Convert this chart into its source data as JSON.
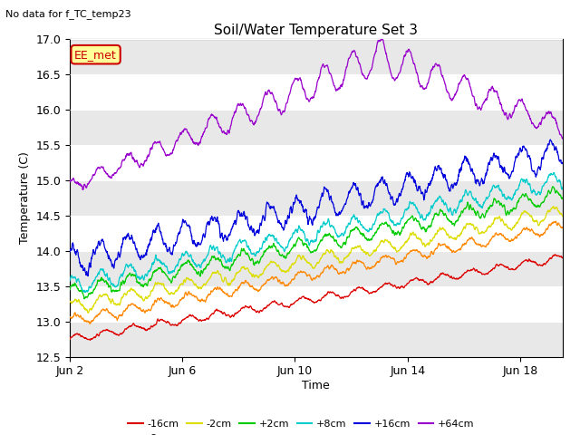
{
  "title": "Soil/Water Temperature Set 3",
  "xlabel": "Time",
  "ylabel": "Temperature (C)",
  "suptitle": "No data for f_TC_temp23",
  "ylim": [
    12.5,
    17.0
  ],
  "xlim_days": [
    0,
    17.5
  ],
  "yticks": [
    12.5,
    13.0,
    13.5,
    14.0,
    14.5,
    15.0,
    15.5,
    16.0,
    16.5,
    17.0
  ],
  "xtick_labels": [
    "Jun 2",
    "Jun 6",
    "Jun 10",
    "Jun 14",
    "Jun 18"
  ],
  "xtick_positions": [
    0,
    4,
    8,
    12,
    16
  ],
  "series": {
    "-16cm": {
      "color": "#dd0000",
      "start": 12.75,
      "end": 13.9,
      "amp": 0.05,
      "phase": 0.0
    },
    "-8cm": {
      "color": "#ff8800",
      "start": 13.0,
      "end": 14.35,
      "amp": 0.07,
      "phase": 0.3
    },
    "-2cm": {
      "color": "#dddd00",
      "start": 13.2,
      "end": 14.55,
      "amp": 0.09,
      "phase": 0.5
    },
    "+2cm": {
      "color": "#00cc00",
      "start": 13.4,
      "end": 14.8,
      "amp": 0.1,
      "phase": 0.7
    },
    "+8cm": {
      "color": "#00cccc",
      "start": 13.5,
      "end": 15.0,
      "amp": 0.12,
      "phase": 0.9
    },
    "+16cm": {
      "color": "#0000dd",
      "start": 13.85,
      "end": 15.4,
      "amp": 0.18,
      "phase": 1.1
    }
  },
  "purple64": {
    "color": "#9900cc",
    "peak_day": 11.0,
    "peak_val": 16.75,
    "start_val": 14.9,
    "end_val": 15.75,
    "amp_peak": 0.25,
    "amp_start": 0.08
  },
  "legend_box_color": "#ffff99",
  "legend_box_edge": "#cc0000",
  "legend_box_text": "EE_met",
  "bg_band_color": "#e8e8e8"
}
